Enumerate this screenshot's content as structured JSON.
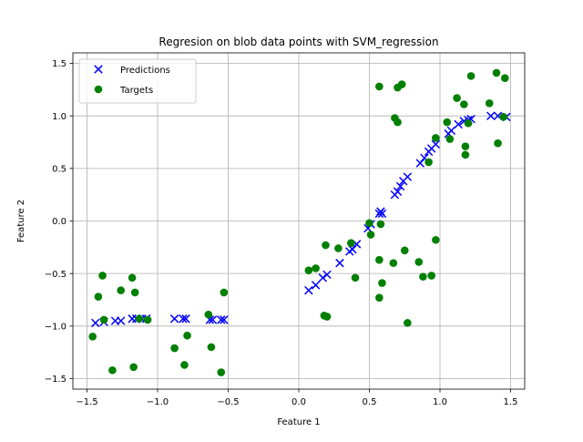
{
  "chart_data": {
    "type": "scatter",
    "title": "Regresion on blob data points with SVM_regression",
    "xlabel": "Feature 1",
    "ylabel": "Feature 2",
    "xlim": [
      -1.6,
      1.6
    ],
    "ylim": [
      -1.6,
      1.6
    ],
    "xticks": [
      -1.5,
      -1.0,
      -0.5,
      0.0,
      0.5,
      1.0,
      1.5
    ],
    "xtick_labels": [
      "−1.5",
      "−1.0",
      "−0.5",
      "0.0",
      "0.5",
      "1.0",
      "1.5"
    ],
    "yticks": [
      -1.5,
      -1.0,
      -0.5,
      0.0,
      0.5,
      1.0,
      1.5
    ],
    "ytick_labels": [
      "−1.5",
      "−1.0",
      "−0.5",
      "0.0",
      "0.5",
      "1.0",
      "1.5"
    ],
    "grid": true,
    "legend_position": "top-left",
    "series": [
      {
        "name": "Predictions",
        "marker": "x",
        "color": "#0000ff",
        "points": [
          [
            -1.44,
            -0.97
          ],
          [
            -1.38,
            -0.96
          ],
          [
            -1.3,
            -0.95
          ],
          [
            -1.26,
            -0.95
          ],
          [
            -1.18,
            -0.93
          ],
          [
            -1.15,
            -0.93
          ],
          [
            -1.11,
            -0.93
          ],
          [
            -1.08,
            -0.93
          ],
          [
            -0.88,
            -0.93
          ],
          [
            -0.82,
            -0.93
          ],
          [
            -0.8,
            -0.93
          ],
          [
            -0.63,
            -0.94
          ],
          [
            -0.61,
            -0.94
          ],
          [
            -0.55,
            -0.94
          ],
          [
            -0.53,
            -0.94
          ],
          [
            0.07,
            -0.66
          ],
          [
            0.12,
            -0.61
          ],
          [
            0.17,
            -0.54
          ],
          [
            0.2,
            -0.51
          ],
          [
            0.29,
            -0.4
          ],
          [
            0.36,
            -0.29
          ],
          [
            0.38,
            -0.27
          ],
          [
            0.41,
            -0.22
          ],
          [
            0.49,
            -0.07
          ],
          [
            0.51,
            -0.03
          ],
          [
            0.57,
            0.07
          ],
          [
            0.58,
            0.09
          ],
          [
            0.59,
            0.07
          ],
          [
            0.68,
            0.25
          ],
          [
            0.7,
            0.28
          ],
          [
            0.72,
            0.33
          ],
          [
            0.74,
            0.38
          ],
          [
            0.77,
            0.42
          ],
          [
            0.86,
            0.55
          ],
          [
            0.89,
            0.6
          ],
          [
            0.92,
            0.66
          ],
          [
            0.94,
            0.69
          ],
          [
            0.97,
            0.73
          ],
          [
            1.06,
            0.83
          ],
          [
            1.08,
            0.86
          ],
          [
            1.13,
            0.92
          ],
          [
            1.17,
            0.95
          ],
          [
            1.2,
            0.96
          ],
          [
            1.22,
            0.97
          ],
          [
            1.36,
            1.0
          ],
          [
            1.41,
            1.0
          ],
          [
            1.47,
            0.99
          ]
        ]
      },
      {
        "name": "Targets",
        "marker": "o",
        "color": "#008000",
        "points": [
          [
            -1.46,
            -1.1
          ],
          [
            -1.42,
            -0.72
          ],
          [
            -1.39,
            -0.52
          ],
          [
            -1.38,
            -0.94
          ],
          [
            -1.32,
            -1.42
          ],
          [
            -1.26,
            -0.66
          ],
          [
            -1.18,
            -0.54
          ],
          [
            -1.17,
            -1.39
          ],
          [
            -1.16,
            -0.68
          ],
          [
            -1.13,
            -0.93
          ],
          [
            -1.07,
            -0.94
          ],
          [
            -0.88,
            -1.21
          ],
          [
            -0.81,
            -1.37
          ],
          [
            -0.79,
            -1.09
          ],
          [
            -0.64,
            -0.89
          ],
          [
            -0.62,
            -1.2
          ],
          [
            -0.55,
            -1.44
          ],
          [
            -0.53,
            -0.68
          ],
          [
            0.07,
            -0.47
          ],
          [
            0.12,
            -0.45
          ],
          [
            0.18,
            -0.9
          ],
          [
            0.19,
            -0.23
          ],
          [
            0.2,
            -0.91
          ],
          [
            0.28,
            -0.26
          ],
          [
            0.37,
            -0.21
          ],
          [
            0.4,
            -0.54
          ],
          [
            0.5,
            -0.02
          ],
          [
            0.51,
            -0.13
          ],
          [
            0.57,
            1.28
          ],
          [
            0.57,
            -0.37
          ],
          [
            0.57,
            -0.73
          ],
          [
            0.58,
            -0.03
          ],
          [
            0.59,
            -0.59
          ],
          [
            0.67,
            -0.4
          ],
          [
            0.68,
            0.98
          ],
          [
            0.7,
            0.94
          ],
          [
            0.7,
            1.27
          ],
          [
            0.73,
            1.3
          ],
          [
            0.75,
            -0.28
          ],
          [
            0.77,
            -0.97
          ],
          [
            0.85,
            -0.39
          ],
          [
            0.88,
            -0.53
          ],
          [
            0.92,
            0.56
          ],
          [
            0.94,
            -0.52
          ],
          [
            0.97,
            0.79
          ],
          [
            0.97,
            -0.18
          ],
          [
            1.05,
            0.94
          ],
          [
            1.07,
            0.78
          ],
          [
            1.12,
            1.17
          ],
          [
            1.17,
            1.11
          ],
          [
            1.18,
            0.71
          ],
          [
            1.18,
            0.63
          ],
          [
            1.2,
            0.93
          ],
          [
            1.22,
            1.38
          ],
          [
            1.35,
            1.12
          ],
          [
            1.4,
            1.41
          ],
          [
            1.41,
            0.74
          ],
          [
            1.45,
            0.99
          ],
          [
            1.46,
            1.36
          ]
        ]
      }
    ]
  }
}
